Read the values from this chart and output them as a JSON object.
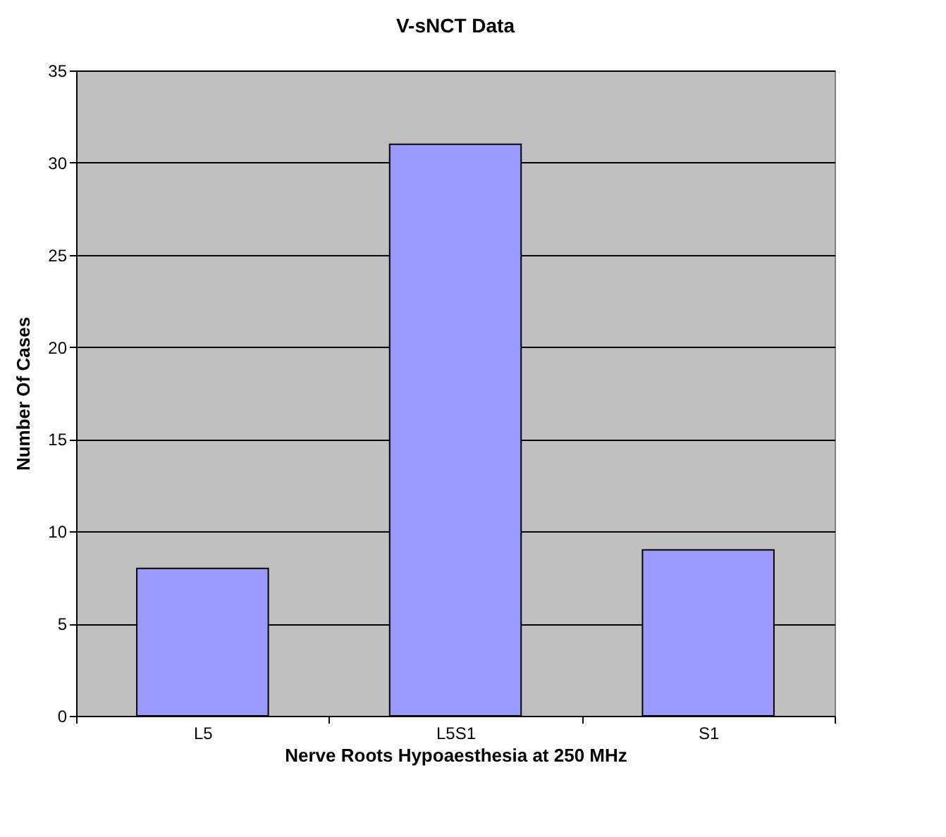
{
  "chart_data": {
    "type": "bar",
    "title": "V-sNCT Data",
    "xlabel": "Nerve Roots Hypoaesthesia at 250 MHz",
    "ylabel": "Number Of Cases",
    "categories": [
      "L5",
      "L5S1",
      "S1"
    ],
    "values": [
      8,
      31,
      9
    ],
    "color": "#9999ff",
    "ylim": [
      0,
      35
    ],
    "yticks": [
      0,
      5,
      10,
      15,
      20,
      25,
      30,
      35
    ],
    "grid": "y"
  }
}
